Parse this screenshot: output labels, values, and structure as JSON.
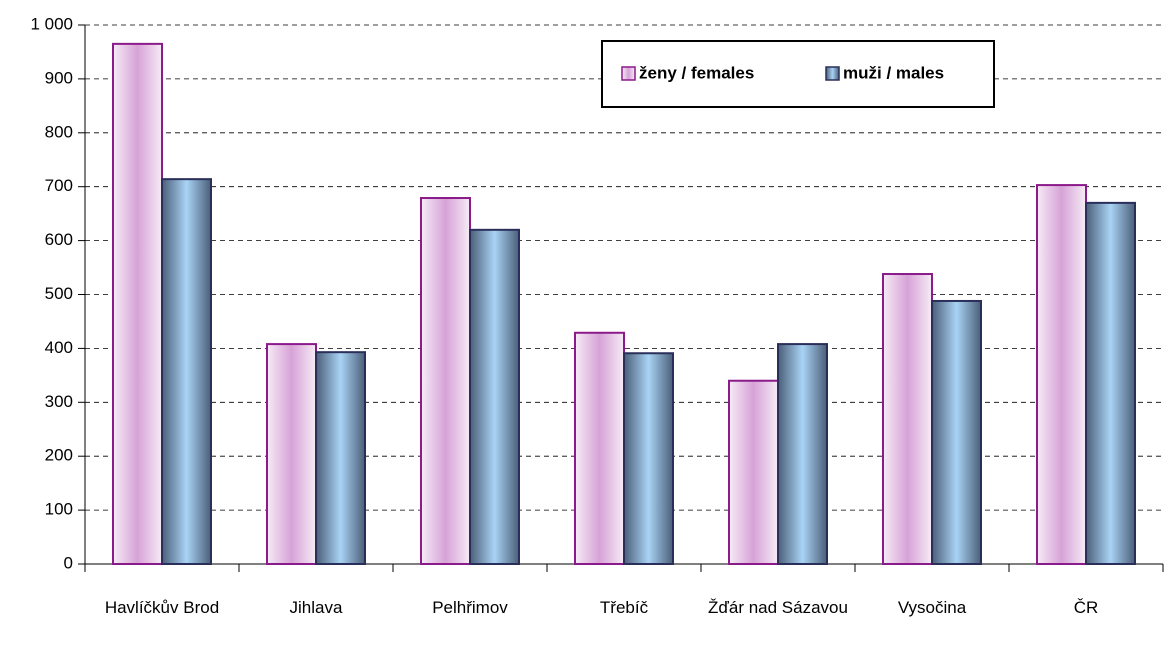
{
  "chart_data": {
    "type": "bar",
    "categories": [
      "Havlíčkův Brod",
      "Jihlava",
      "Pelhřimov",
      "Třebíč",
      "Žďár nad Sázavou",
      "Vysočina",
      "ČR"
    ],
    "series": [
      {
        "name": "ženy / females",
        "color": "#8b1a8b",
        "values": [
          965,
          408,
          679,
          429,
          340,
          538,
          703
        ]
      },
      {
        "name": "muži / males",
        "color": "#2a2f5a",
        "values": [
          714,
          393,
          620,
          391,
          408,
          488,
          670
        ]
      }
    ],
    "ylim": [
      0,
      1000
    ],
    "yticks": [
      0,
      100,
      200,
      300,
      400,
      500,
      600,
      700,
      800,
      900,
      {
        "value": 1000,
        "label": "1 000"
      }
    ],
    "grid": true
  }
}
